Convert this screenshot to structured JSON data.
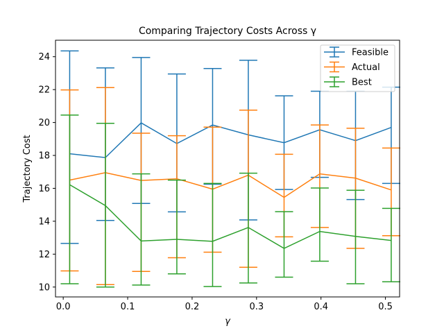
{
  "chart_data": {
    "type": "line",
    "title": "Comparing Trajectory Costs Across γ",
    "xlabel": "γ",
    "ylabel": "Trajectory Cost",
    "xlim": [
      -0.012,
      0.522
    ],
    "ylim": [
      9.4,
      25.0
    ],
    "xticks": [
      0.0,
      0.1,
      0.2,
      0.3,
      0.4,
      0.5
    ],
    "xtick_labels": [
      "0.0",
      "0.1",
      "0.2",
      "0.3",
      "0.4",
      "0.5"
    ],
    "yticks": [
      10,
      12,
      14,
      16,
      18,
      20,
      22,
      24
    ],
    "ytick_labels": [
      "10",
      "12",
      "14",
      "16",
      "18",
      "20",
      "22",
      "24"
    ],
    "grid": false,
    "legend_position": "top-right",
    "x": [
      0.01,
      0.0654,
      0.1209,
      0.1763,
      0.2318,
      0.2872,
      0.3427,
      0.3981,
      0.4536,
      0.509
    ],
    "series": [
      {
        "name": "Feasible",
        "color": "#1f77b4",
        "values": [
          18.1,
          17.87,
          19.98,
          18.72,
          19.85,
          19.25,
          18.77,
          19.56,
          18.9,
          19.7
        ],
        "lower": [
          12.65,
          14.05,
          15.08,
          14.57,
          16.25,
          14.08,
          15.93,
          16.67,
          15.32,
          16.3
        ],
        "upper": [
          24.35,
          23.32,
          23.95,
          22.95,
          23.28,
          23.78,
          21.62,
          21.9,
          21.9,
          22.15
        ]
      },
      {
        "name": "Actual",
        "color": "#ff7f0e",
        "values": [
          16.5,
          16.95,
          16.48,
          16.58,
          15.95,
          16.8,
          15.45,
          16.88,
          16.62,
          15.9
        ],
        "lower": [
          10.98,
          10.15,
          10.95,
          11.78,
          12.12,
          11.2,
          13.05,
          13.62,
          12.35,
          13.12
        ],
        "upper": [
          21.98,
          22.12,
          19.35,
          19.2,
          19.72,
          20.75,
          18.07,
          19.85,
          19.65,
          18.45
        ]
      },
      {
        "name": "Best",
        "color": "#2ca02c",
        "values": [
          16.22,
          14.95,
          12.8,
          12.9,
          12.78,
          13.62,
          12.35,
          13.38,
          13.08,
          12.83
        ],
        "lower": [
          10.2,
          10.0,
          10.12,
          10.8,
          10.03,
          10.25,
          10.6,
          11.57,
          10.2,
          10.32
        ],
        "upper": [
          20.45,
          19.95,
          16.88,
          16.5,
          16.3,
          16.92,
          14.58,
          16.02,
          15.88,
          14.78
        ]
      }
    ]
  }
}
